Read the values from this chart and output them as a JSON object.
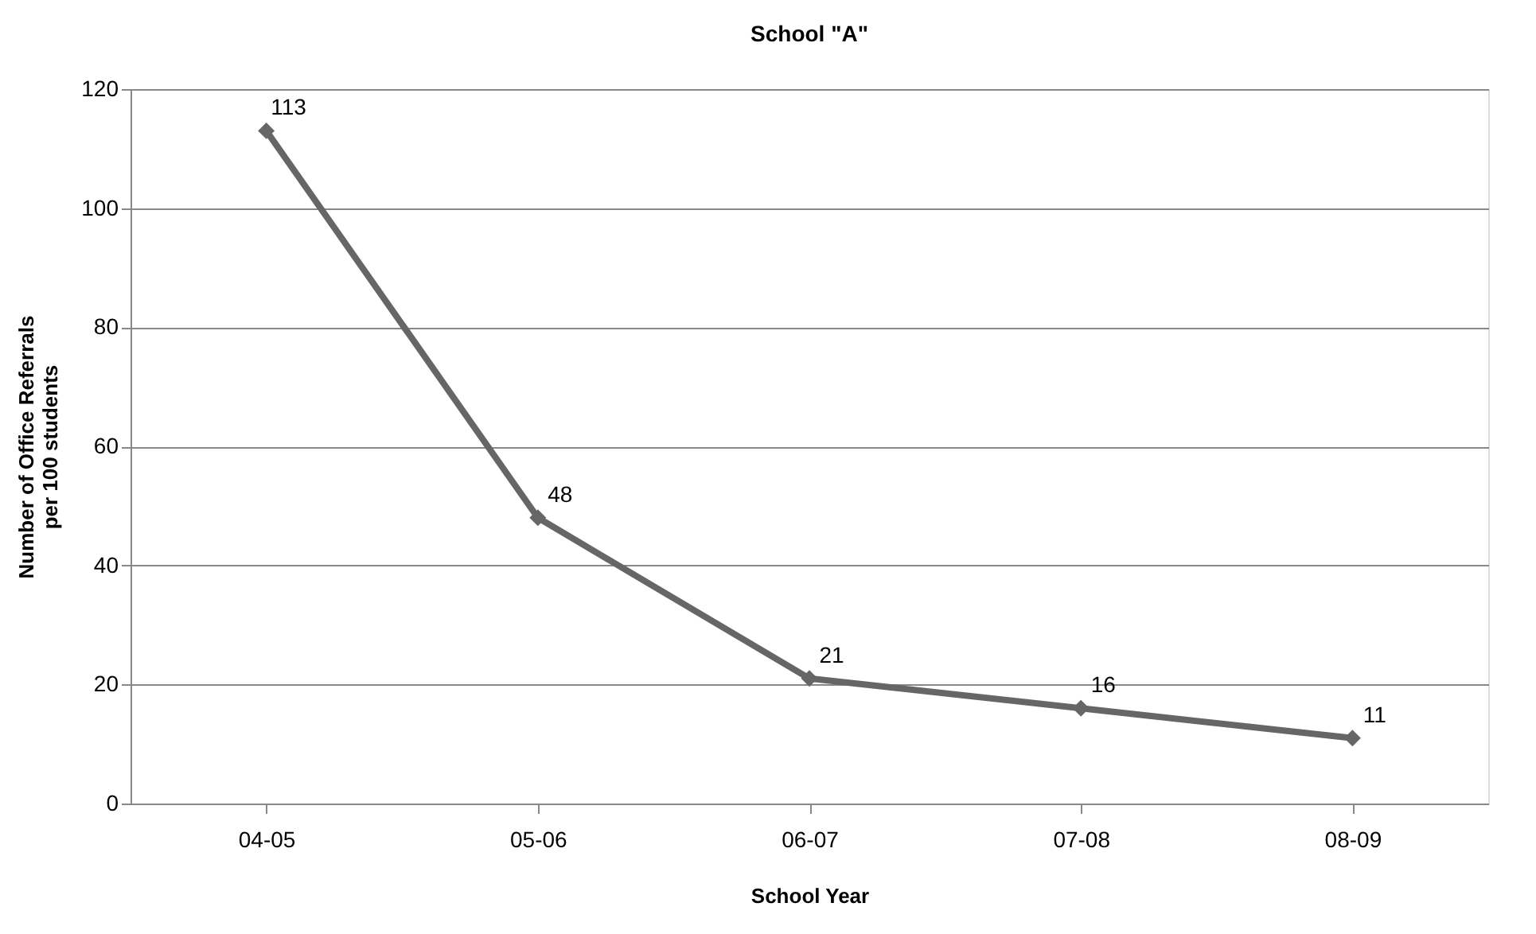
{
  "chart_data": {
    "type": "line",
    "title": "School \"A\"",
    "xlabel": "School Year",
    "ylabel": "Number of Office Referrals\nper 100 students",
    "categories": [
      "04-05",
      "05-06",
      "06-07",
      "07-08",
      "08-09"
    ],
    "series": [
      {
        "color": "#666666",
        "values": [
          113,
          48,
          21,
          16,
          11
        ]
      }
    ],
    "ylim": [
      0,
      120
    ],
    "yticks": [
      0,
      20,
      40,
      60,
      80,
      100,
      120
    ],
    "grid": "y",
    "marker": "diamond",
    "line_style": "solid",
    "data_labels": true,
    "legend": false
  }
}
